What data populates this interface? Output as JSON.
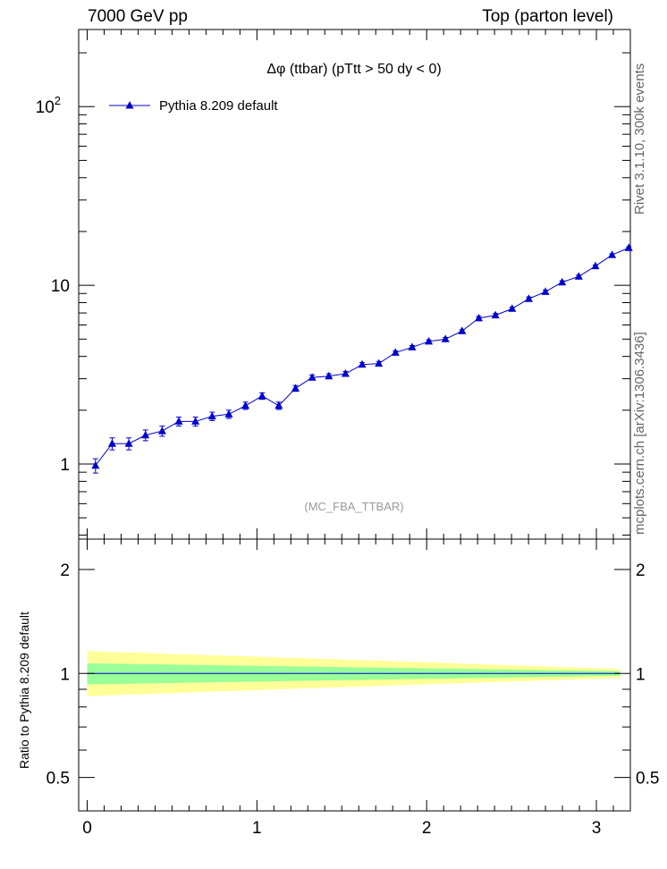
{
  "header": {
    "left": "7000 GeV pp",
    "right": "Top (parton level)"
  },
  "side_labels": {
    "rivet": "Rivet 3.1.10, 300k events",
    "mcplots": "mcplots.cern.ch [arXiv:1306.3436]"
  },
  "chart_data": [
    {
      "type": "line",
      "title": "Δφ (ttbar) (pTtt > 50 dy < 0)",
      "watermark": "(MC_FBA_TTBAR)",
      "legend_position": "top-left",
      "y_scale": "log",
      "xlim": [
        -0.05,
        3.2
      ],
      "ylim": [
        0.38,
        270
      ],
      "y_ticks": [
        {
          "value": 1,
          "label": "1"
        },
        {
          "value": 10,
          "label": "10"
        },
        {
          "value": 100,
          "label": "10",
          "sup": "2"
        }
      ],
      "series": [
        {
          "name": "Pythia 8.209 default",
          "color": "#0000cc",
          "marker": "triangle",
          "x": [
            0.0491,
            0.1473,
            0.2454,
            0.3436,
            0.4418,
            0.54,
            0.6381,
            0.7363,
            0.8345,
            0.9327,
            1.0308,
            1.129,
            1.2272,
            1.3254,
            1.4235,
            1.5217,
            1.6199,
            1.7181,
            1.8162,
            1.9144,
            2.0126,
            2.1108,
            2.2089,
            2.3071,
            2.4053,
            2.5035,
            2.6016,
            2.6998,
            2.798,
            2.8962,
            2.9943,
            3.0925,
            3.1907
          ],
          "y": [
            0.98,
            1.3,
            1.3,
            1.45,
            1.53,
            1.73,
            1.73,
            1.85,
            1.9,
            2.12,
            2.4,
            2.12,
            2.65,
            3.05,
            3.1,
            3.2,
            3.6,
            3.65,
            4.2,
            4.5,
            4.85,
            5.0,
            5.55,
            6.55,
            6.8,
            7.4,
            8.4,
            9.2,
            10.4,
            11.2,
            12.8,
            14.8,
            16.2
          ],
          "yerr": [
            0.09,
            0.1,
            0.1,
            0.1,
            0.1,
            0.1,
            0.1,
            0.1,
            0.1,
            0.1,
            0.1,
            0.1,
            0.1,
            0.1,
            0.1,
            0.1,
            0.1,
            0.1,
            0.1,
            0.1,
            0.1,
            0.1,
            0.1,
            0.15,
            0.15,
            0.15,
            0.2,
            0.2,
            0.2,
            0.2,
            0.2,
            0.2,
            0.2
          ]
        }
      ]
    },
    {
      "type": "area",
      "ylabel": "Ratio to Pythia 8.209 default",
      "y_scale": "log",
      "xlim": [
        -0.05,
        3.2
      ],
      "ylim": [
        0.4,
        2.45
      ],
      "x_ticks": [
        0,
        1,
        2,
        3
      ],
      "y_ticks": [
        0.5,
        1,
        2
      ],
      "series": [
        {
          "name": "stat",
          "color": "#99ff99",
          "x": [
            0.0,
            3.14
          ],
          "lower": [
            0.93,
            0.985
          ],
          "upper": [
            1.07,
            1.015
          ]
        },
        {
          "name": "syst",
          "color": "#ffff99",
          "x": [
            0.0,
            3.14
          ],
          "lower": [
            0.86,
            0.97
          ],
          "upper": [
            1.16,
            1.03
          ]
        }
      ],
      "reference": 1
    }
  ]
}
